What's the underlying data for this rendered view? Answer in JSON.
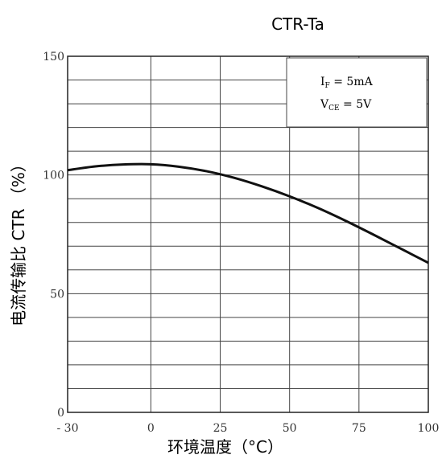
{
  "chart_data": {
    "type": "line",
    "title": "CTR-Ta",
    "xlabel": "环境温度（°C）",
    "ylabel": "电流传输比 CTR （%）",
    "xlim": [
      -30,
      100
    ],
    "ylim": [
      0,
      150
    ],
    "x_ticks": [
      -30,
      0,
      25,
      50,
      75,
      100
    ],
    "x_tick_labels": [
      "- 30",
      "0",
      "25",
      "50",
      "75",
      "100"
    ],
    "y_ticks": [
      0,
      50,
      100,
      150
    ],
    "y_tick_labels": [
      "0",
      "50",
      "100",
      "150"
    ],
    "grid": true,
    "series": [
      {
        "x": [
          -30,
          -20,
          -10,
          0,
          10,
          20,
          30,
          40,
          50,
          60,
          70,
          80,
          90,
          100
        ],
        "y": [
          102,
          103.6,
          104.4,
          104.5,
          103.5,
          101.6,
          98.8,
          95.2,
          91,
          86.2,
          80.8,
          75,
          69,
          63
        ]
      }
    ],
    "annotations": [
      {
        "text": "I",
        "sub": "F",
        "rest": " = 5mA"
      },
      {
        "text": "V",
        "sub": "CE",
        "rest": " = 5V"
      }
    ]
  }
}
